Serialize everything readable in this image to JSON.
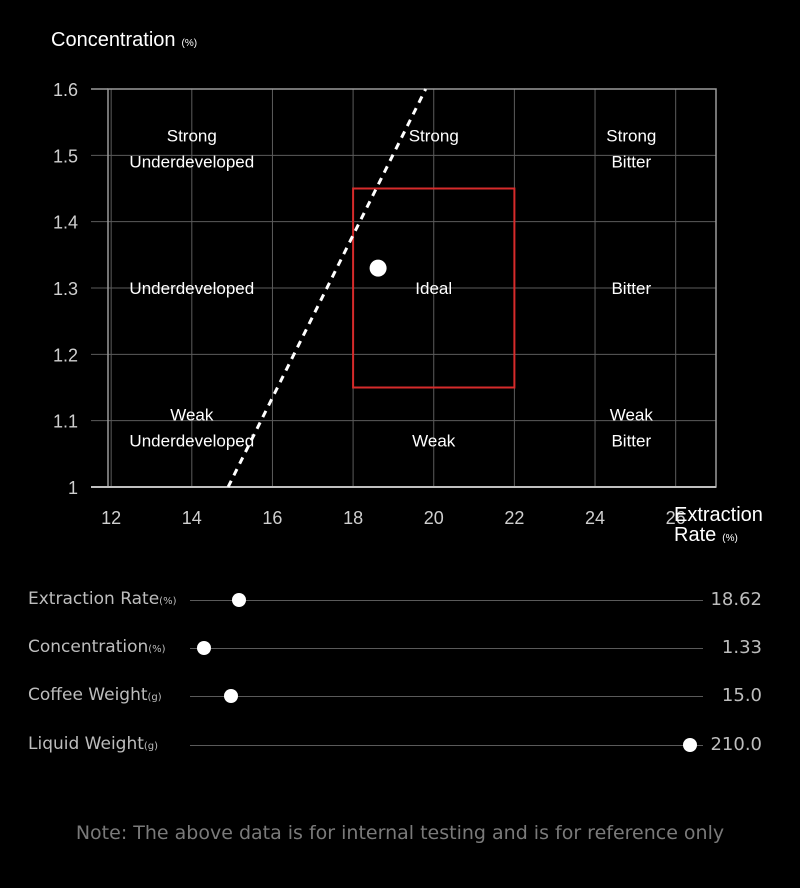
{
  "chart_data": {
    "type": "scatter",
    "ylabel": "Concentration",
    "ylabel_unit": "(%)",
    "xlabel_line1": "Extraction",
    "xlabel_line2": "Rate",
    "xlabel_unit": "(%)",
    "xlim": [
      11.5,
      27.0
    ],
    "ylim": [
      1.0,
      1.6
    ],
    "x_ticks": [
      12,
      14,
      16,
      18,
      20,
      22,
      24,
      26
    ],
    "y_ticks": [
      1,
      1.1,
      1.2,
      1.3,
      1.4,
      1.5,
      1.6
    ],
    "y_tick_labels": [
      "1",
      "1.1",
      "1.2",
      "1.3",
      "1.4",
      "1.5",
      "1.6"
    ],
    "grid": true,
    "ideal_box": {
      "x": [
        18,
        22
      ],
      "y": [
        1.15,
        1.45
      ],
      "color": "#d62b2b"
    },
    "ratio_line": {
      "points": [
        [
          14.9,
          1.0
        ],
        [
          19.8,
          1.6
        ]
      ],
      "style": "dashed"
    },
    "point": {
      "x": 18.62,
      "y": 1.33
    },
    "regions": [
      {
        "x": 14,
        "y": 1.51,
        "lines": [
          "Strong",
          "Underdeveloped"
        ]
      },
      {
        "x": 20,
        "y": 1.53,
        "lines": [
          "Strong"
        ]
      },
      {
        "x": 24.9,
        "y": 1.51,
        "lines": [
          "Strong",
          "Bitter"
        ]
      },
      {
        "x": 14,
        "y": 1.3,
        "lines": [
          "Underdeveloped"
        ]
      },
      {
        "x": 20,
        "y": 1.3,
        "lines": [
          "Ideal"
        ]
      },
      {
        "x": 24.9,
        "y": 1.3,
        "lines": [
          "Bitter"
        ]
      },
      {
        "x": 14,
        "y": 1.09,
        "lines": [
          "Weak",
          "Underdeveloped"
        ]
      },
      {
        "x": 20,
        "y": 1.07,
        "lines": [
          "Weak"
        ]
      },
      {
        "x": 24.9,
        "y": 1.09,
        "lines": [
          "Weak",
          "Bitter"
        ]
      }
    ]
  },
  "sliders": [
    {
      "label": "Extraction Rate",
      "unit": "(%)",
      "value": "18.62",
      "fraction": 0.096
    },
    {
      "label": "Concentration",
      "unit": "(%)",
      "value": "1.33",
      "fraction": 0.027
    },
    {
      "label": "Coffee Weight",
      "unit": "(g)",
      "value": "15.0",
      "fraction": 0.08
    },
    {
      "label": "Liquid Weight",
      "unit": "(g)",
      "value": "210.0",
      "fraction": 0.975
    }
  ],
  "note": "Note: The above data is for internal testing and is for reference only"
}
